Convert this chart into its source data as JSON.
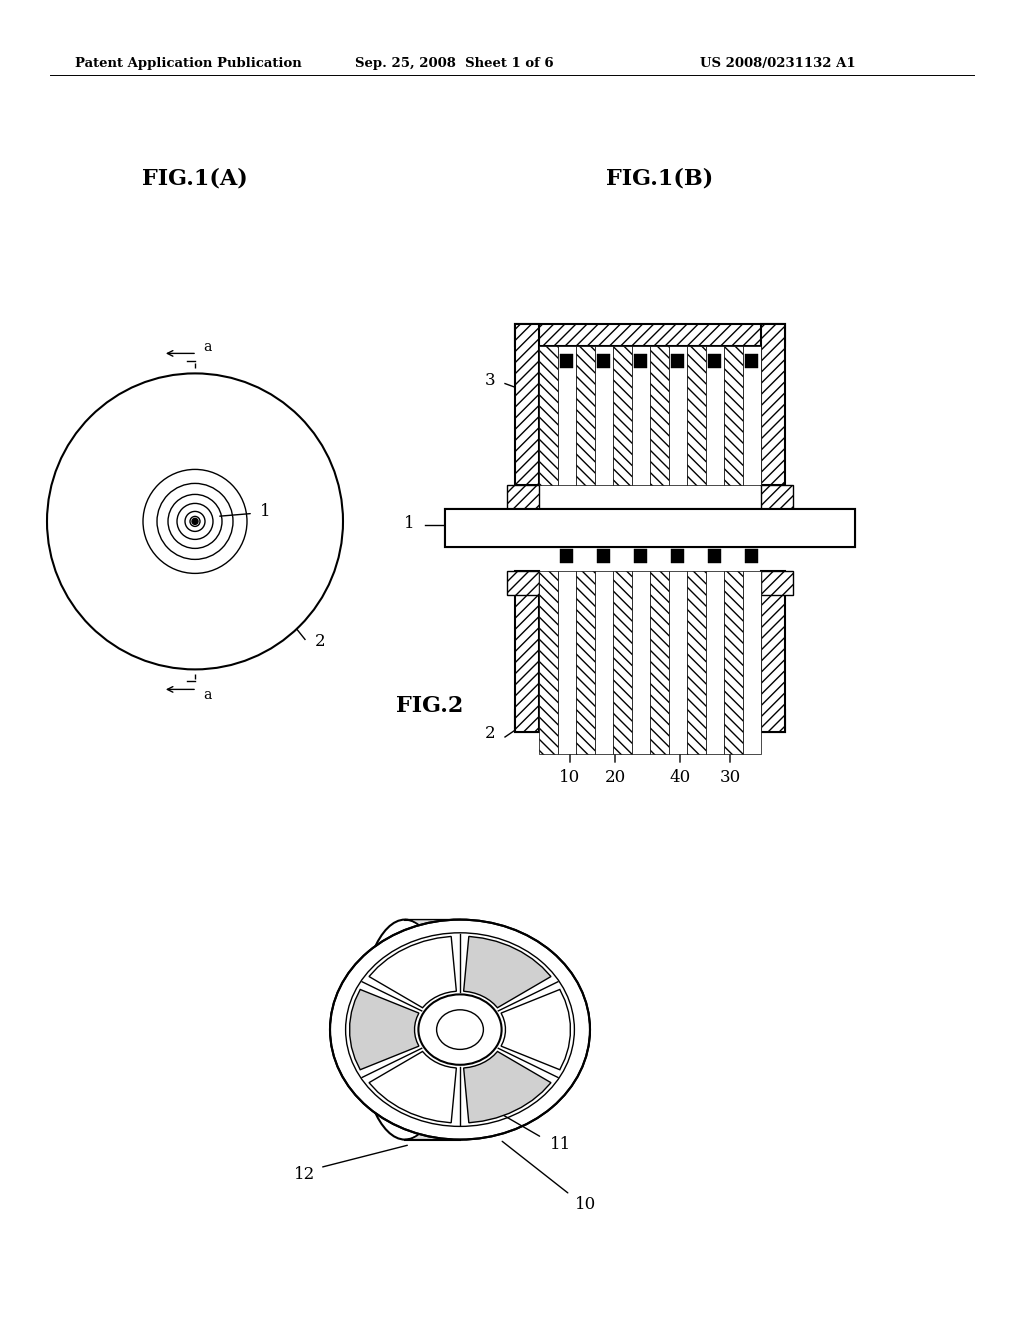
{
  "background_color": "#ffffff",
  "header_text": "Patent Application Publication",
  "header_date": "Sep. 25, 2008  Sheet 1 of 6",
  "header_patent": "US 2008/0231132 A1",
  "fig1a_title": "FIG.1(A)",
  "fig1b_title": "FIG.1(B)",
  "fig2_title": "FIG.2",
  "line_color": "#000000"
}
